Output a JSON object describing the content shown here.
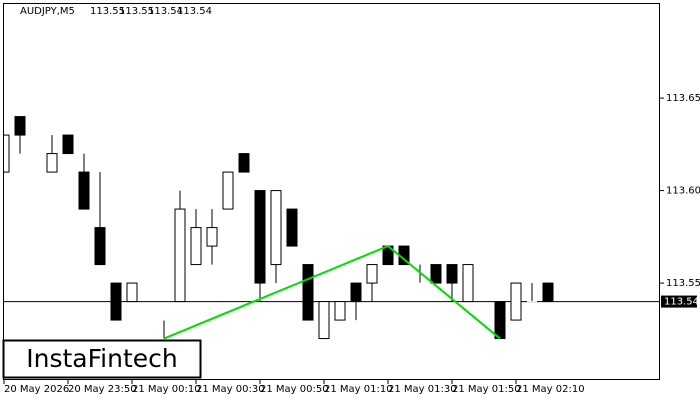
{
  "chart_data": {
    "type": "candlestick",
    "title": "AUDJPY,M5",
    "header_values": [
      113.55,
      113.55,
      113.54,
      113.54
    ],
    "categories": [
      "20 May 2026",
      null,
      null,
      null,
      "20 May 23:50",
      null,
      null,
      null,
      "21 May 00:10",
      null,
      null,
      null,
      "21 May 00:30",
      null,
      null,
      null,
      "21 May 00:50",
      null,
      null,
      null,
      "21 May 01:10",
      null,
      null,
      null,
      "21 May 01:30",
      null,
      null,
      null,
      "21 May 01:50",
      null,
      null,
      null,
      "21 May 02:10",
      null,
      null
    ],
    "open": [
      113.61,
      113.64,
      113.62,
      113.61,
      113.63,
      113.61,
      113.58,
      113.55,
      113.54,
      null,
      113.53,
      113.54,
      113.56,
      113.57,
      113.59,
      113.62,
      113.6,
      113.56,
      113.59,
      113.56,
      113.52,
      113.53,
      113.55,
      113.55,
      113.57,
      113.57,
      113.55,
      113.56,
      113.56,
      113.54,
      113.55,
      113.54,
      113.53,
      113.54,
      113.55
    ],
    "high": [
      113.63,
      113.64,
      113.62,
      113.63,
      113.63,
      113.62,
      113.61,
      113.55,
      113.55,
      null,
      113.53,
      113.6,
      113.59,
      113.59,
      113.61,
      113.62,
      113.6,
      113.6,
      113.59,
      113.56,
      113.54,
      113.54,
      113.55,
      113.56,
      113.57,
      113.57,
      113.56,
      113.56,
      113.56,
      113.56,
      113.55,
      113.54,
      113.55,
      113.55,
      113.55
    ],
    "low": [
      113.61,
      113.62,
      113.62,
      113.61,
      113.62,
      113.59,
      113.56,
      113.53,
      113.54,
      null,
      113.52,
      113.54,
      113.56,
      113.56,
      113.59,
      113.61,
      113.54,
      113.55,
      113.57,
      113.53,
      113.52,
      113.53,
      113.53,
      113.54,
      113.56,
      113.56,
      113.55,
      113.55,
      113.54,
      113.54,
      113.55,
      113.52,
      113.53,
      113.54,
      113.54
    ],
    "close": [
      113.63,
      113.63,
      113.62,
      113.62,
      113.62,
      113.59,
      113.56,
      113.53,
      113.55,
      null,
      113.53,
      113.59,
      113.58,
      113.58,
      113.61,
      113.61,
      113.55,
      113.6,
      113.57,
      113.53,
      113.54,
      113.54,
      113.54,
      113.56,
      113.56,
      113.56,
      113.55,
      113.55,
      113.55,
      113.56,
      113.55,
      113.52,
      113.55,
      113.54,
      113.54
    ],
    "bull_color": "#ffffff",
    "bear_color": "#000000",
    "ylim": [
      113.4976,
      113.7014
    ],
    "yticks": [
      113.55,
      {
        "value": 113.6,
        "label": "113.60"
      },
      113.65
    ],
    "current_price": 113.54,
    "pattern": {
      "color": "#00dd00",
      "x": [
        10,
        24,
        31
      ],
      "values": [
        113.52,
        113.57,
        113.52
      ]
    }
  },
  "watermark": "InstaFintech"
}
